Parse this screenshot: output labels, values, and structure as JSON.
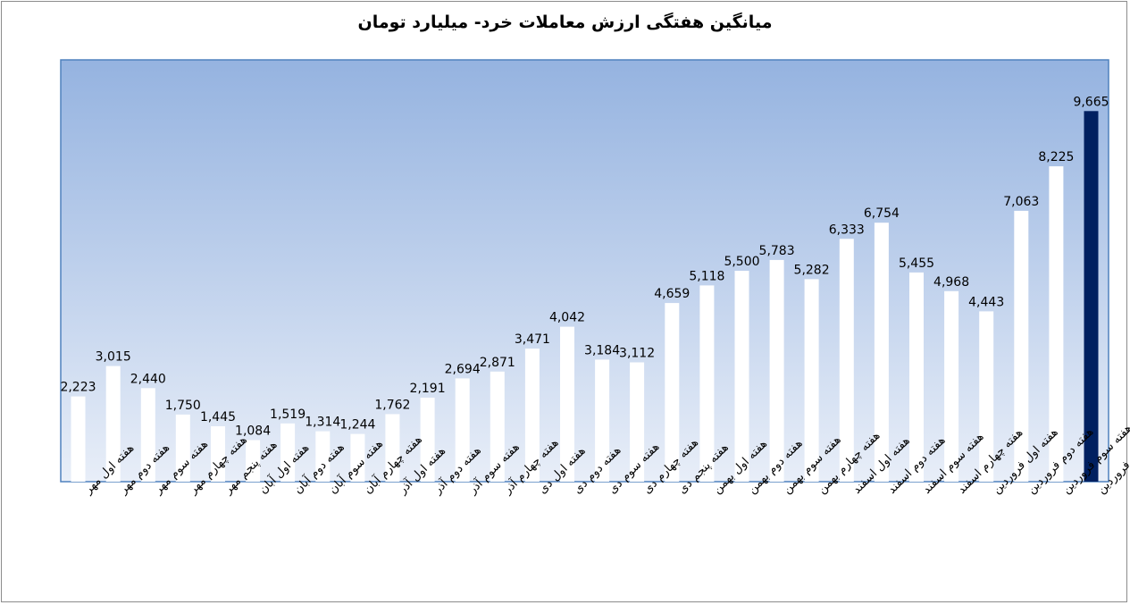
{
  "chart_data": {
    "type": "bar",
    "title": "میانگین هفتگی ارزش معاملات خرد- میلیارد تومان",
    "xlabel": "",
    "ylabel": "",
    "ylim": [
      0,
      11000
    ],
    "grid": false,
    "legend": "none",
    "colors": {
      "bar": "#ffffff",
      "highlight_bar": "#002060",
      "plot_bg_top": "#95b3e0",
      "plot_bg_bottom": "#e8eef8",
      "plot_border": "#4f81bd"
    },
    "highlight_index": 29,
    "categories": [
      "هفته اول مهر",
      "هفته دوم مهر",
      "هفته سوم مهر",
      "هفته چهارم مهر",
      "هفته پنجم مهر",
      "هفته اول آبان",
      "هفته دوم آبان",
      "هفته سوم آبان",
      "هفته چهارم آبان",
      "هفته اول آذر",
      "هفته دوم آذر",
      "هفته سوم آذر",
      "هفته چهارم آذر",
      "هفته اول دی",
      "هفته دوم دی",
      "هفته سوم دی",
      "هفته چهارم دی",
      "هفته پنجم دی",
      "هفته اول بهمن",
      "هفته دوم بهمن",
      "هفته سوم بهمن",
      "هفته چهارم بهمن",
      "هفته اول اسفند",
      "هفته دوم اسفند",
      "هفته سوم اسفند",
      "هفته چهارم اسفند",
      "هفته اول فروردین",
      "هفته دوم فروردین",
      "هفته سوم فروردین",
      "هفته چهارم فروردین"
    ],
    "values": [
      2223,
      3015,
      2440,
      1750,
      1445,
      1084,
      1519,
      1314,
      1244,
      1762,
      2191,
      2694,
      2871,
      3471,
      4042,
      3184,
      3112,
      4659,
      5118,
      5500,
      5783,
      5282,
      6333,
      6754,
      5455,
      4968,
      4443,
      7063,
      8225,
      9665
    ],
    "value_labels": [
      "2,223",
      "3,015",
      "2,440",
      "1,750",
      "1,445",
      "1,084",
      "1,519",
      "1,314",
      "1,244",
      "1,762",
      "2,191",
      "2,694",
      "2,871",
      "3,471",
      "4,042",
      "3,184",
      "3,112",
      "4,659",
      "5,118",
      "5,500",
      "5,783",
      "5,282",
      "6,333",
      "6,754",
      "5,455",
      "4,968",
      "4,443",
      "7,063",
      "8,225",
      "9,665"
    ]
  }
}
